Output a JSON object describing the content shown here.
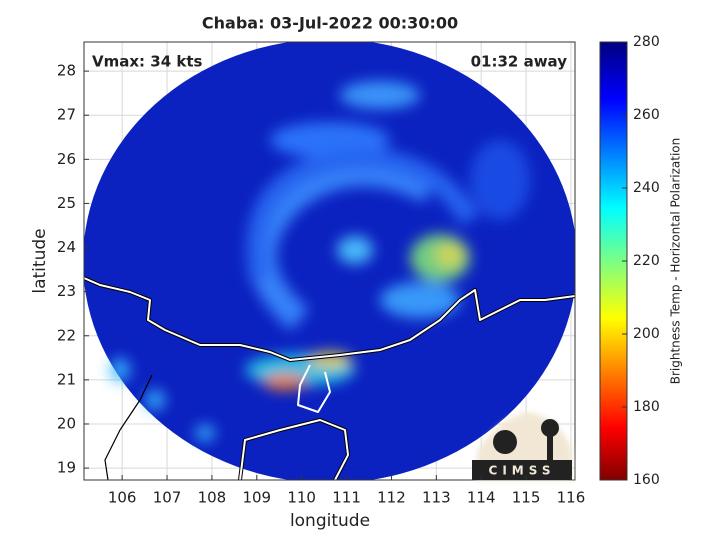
{
  "chart_data": {
    "type": "map",
    "title": "Chaba: 03-Jul-2022 00:30:00",
    "annotation_left": "Vmax: 34 kts",
    "annotation_right": "01:32 away",
    "x_label": "longitude",
    "y_label": "latitude",
    "xlim": [
      105.15,
      116.09
    ],
    "ylim": [
      18.73,
      28.66
    ],
    "xticks": [
      106,
      107,
      108,
      109,
      110,
      111,
      112,
      113,
      114,
      115,
      116
    ],
    "yticks": [
      19,
      20,
      21,
      22,
      23,
      24,
      25,
      26,
      27,
      28
    ],
    "grid": true,
    "colorbar": {
      "label": "Brightness Temp - Horizontal Polarization",
      "lim": [
        160,
        280
      ],
      "ticks": [
        160,
        180,
        200,
        220,
        240,
        260,
        280
      ]
    },
    "logo_text": "CIMSS"
  }
}
